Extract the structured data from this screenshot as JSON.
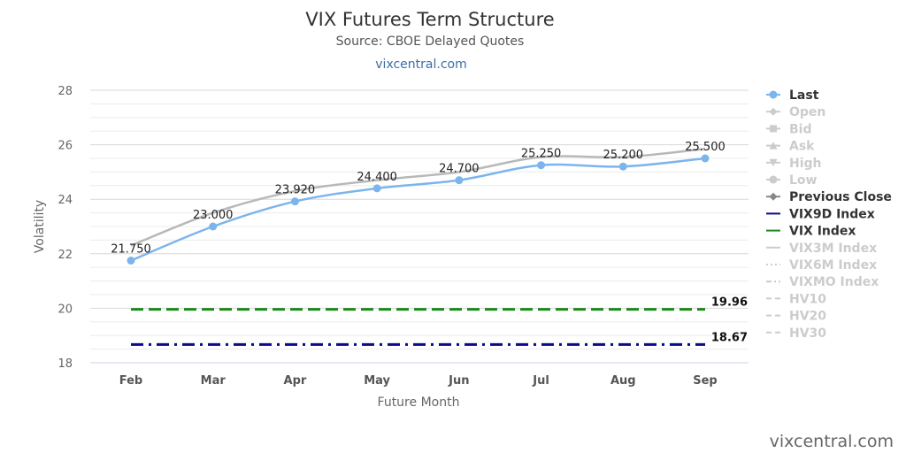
{
  "chart_data": {
    "type": "line",
    "title": "VIX Futures Term Structure",
    "subtitle": "Source: CBOE Delayed Quotes",
    "link": "vixcentral.com",
    "xlabel": "Future Month",
    "ylabel": "Volatility",
    "categories": [
      "Feb",
      "Mar",
      "Apr",
      "May",
      "Jun",
      "Jul",
      "Aug",
      "Sep"
    ],
    "ylim": [
      18,
      28
    ],
    "yticks": [
      18,
      20,
      22,
      24,
      26,
      28
    ],
    "grid": true,
    "legend_position": "right",
    "series": [
      {
        "name": "Last",
        "values": [
          21.75,
          23.0,
          23.92,
          24.4,
          24.7,
          25.25,
          25.2,
          25.5
        ],
        "labels": [
          "21.750",
          "23.000",
          "23.920",
          "24.400",
          "24.700",
          "25.250",
          "25.200",
          "25.500"
        ],
        "color": "#7cb5ec",
        "markers": true
      },
      {
        "name": "Previous Close",
        "values": [
          22.3,
          23.5,
          24.3,
          24.7,
          25.0,
          25.55,
          25.55,
          25.85
        ],
        "color": "#b8b8b8",
        "markers": false
      },
      {
        "name": "VIX9D Index",
        "values": [
          18.67,
          18.67,
          18.67,
          18.67,
          18.67,
          18.67,
          18.67,
          18.67
        ],
        "end_label": "18.67",
        "color": "#0a0a8c",
        "dash": "dashdot"
      },
      {
        "name": "VIX Index",
        "values": [
          19.96,
          19.96,
          19.96,
          19.96,
          19.96,
          19.96,
          19.96,
          19.96
        ],
        "end_label": "19.96",
        "color": "#1a8a1a",
        "dash": "dash"
      }
    ],
    "legend": [
      {
        "name": "Last",
        "color": "#7cb5ec",
        "text_color": "#333333",
        "symbol": "circle-line"
      },
      {
        "name": "Open",
        "color": "#cccccc",
        "text_color": "#cccccc",
        "symbol": "diamond-line"
      },
      {
        "name": "Bid",
        "color": "#cccccc",
        "text_color": "#cccccc",
        "symbol": "square-line"
      },
      {
        "name": "Ask",
        "color": "#cccccc",
        "text_color": "#cccccc",
        "symbol": "triangle-line"
      },
      {
        "name": "High",
        "color": "#cccccc",
        "text_color": "#cccccc",
        "symbol": "triangle-down-line"
      },
      {
        "name": "Low",
        "color": "#cccccc",
        "text_color": "#cccccc",
        "symbol": "circle-line"
      },
      {
        "name": "Previous Close",
        "color": "#888888",
        "text_color": "#333333",
        "symbol": "diamond-line"
      },
      {
        "name": "VIX9D Index",
        "color": "#0a0a8c",
        "text_color": "#333333",
        "symbol": "line"
      },
      {
        "name": "VIX Index",
        "color": "#1a8a1a",
        "text_color": "#333333",
        "symbol": "line"
      },
      {
        "name": "VIX3M Index",
        "color": "#cccccc",
        "text_color": "#cccccc",
        "symbol": "line"
      },
      {
        "name": "VIX6M Index",
        "color": "#cccccc",
        "text_color": "#cccccc",
        "symbol": "dotted"
      },
      {
        "name": "VIXMO Index",
        "color": "#cccccc",
        "text_color": "#cccccc",
        "symbol": "dashdot"
      },
      {
        "name": "HV10",
        "color": "#cccccc",
        "text_color": "#cccccc",
        "symbol": "dashed"
      },
      {
        "name": "HV20",
        "color": "#cccccc",
        "text_color": "#cccccc",
        "symbol": "dashed"
      },
      {
        "name": "HV30",
        "color": "#cccccc",
        "text_color": "#cccccc",
        "symbol": "dashed"
      }
    ]
  },
  "watermark": "vixcentral.com"
}
